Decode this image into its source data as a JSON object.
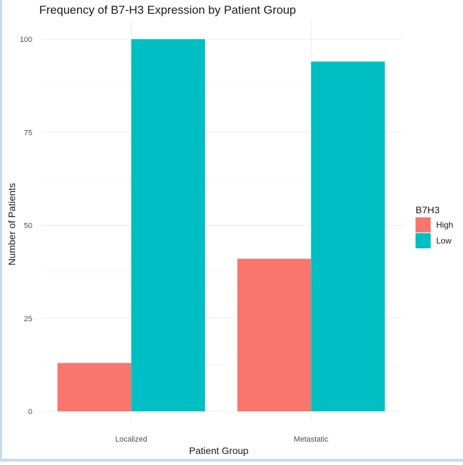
{
  "chart_data": {
    "type": "bar",
    "title": "Frequency of B7-H3 Expression by Patient Group",
    "xlabel": "Patient Group",
    "ylabel": "Number of Patients",
    "categories": [
      "Localized",
      "Metastatic"
    ],
    "series": [
      {
        "name": "High",
        "color": "#F8766D",
        "values": [
          13,
          41
        ]
      },
      {
        "name": "Low",
        "color": "#00BFC4",
        "values": [
          100,
          94
        ]
      }
    ],
    "ylim": [
      0,
      100
    ],
    "yticks": [
      0,
      25,
      50,
      75,
      100
    ],
    "grid": true,
    "legend": {
      "title": "B7H3",
      "position": "right"
    },
    "colors": {
      "grid": "#ebebeb",
      "background": "#ffffff"
    }
  }
}
